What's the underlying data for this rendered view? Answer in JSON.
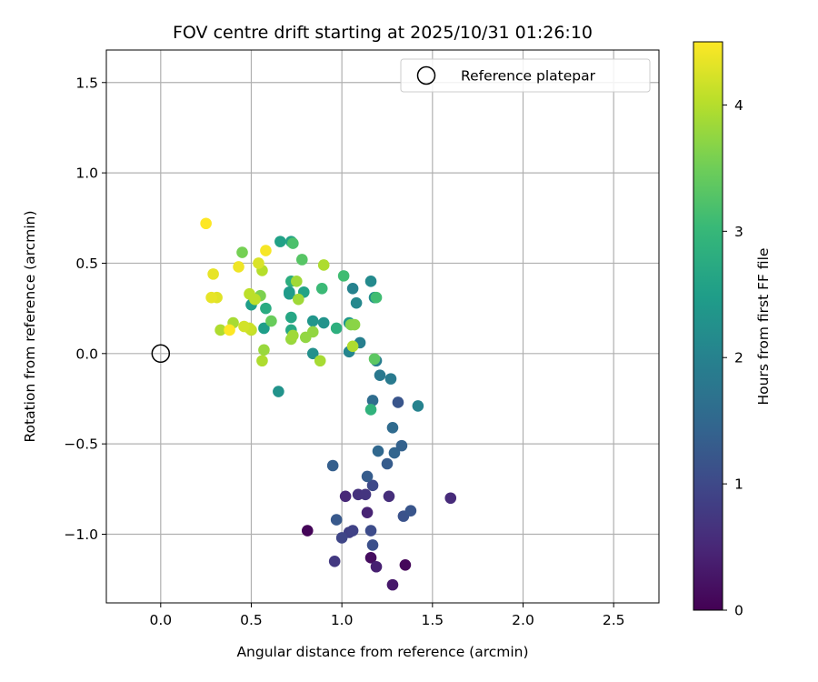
{
  "chart_data": {
    "type": "scatter",
    "title": "FOV centre drift starting at 2025/10/31 01:26:10",
    "xlabel": "Angular distance from reference (arcmin)",
    "ylabel": "Rotation from reference (arcmin)",
    "xlim": [
      -0.3,
      2.75
    ],
    "ylim": [
      -1.38,
      1.68
    ],
    "xticks": [
      0.0,
      0.5,
      1.0,
      1.5,
      2.0,
      2.5
    ],
    "xtick_labels": [
      "0.0",
      "0.5",
      "1.0",
      "1.5",
      "2.0",
      "2.5"
    ],
    "yticks": [
      -1.0,
      -0.5,
      0.0,
      0.5,
      1.0,
      1.5
    ],
    "ytick_labels": [
      "−1.0",
      "−0.5",
      "0.0",
      "0.5",
      "1.0",
      "1.5"
    ],
    "grid": true,
    "legend": {
      "location": "top-right",
      "label": "Reference platepar"
    },
    "reference_point": {
      "x": 0.0,
      "y": 0.0
    },
    "colorbar": {
      "label": "Hours from first FF file",
      "min": 0,
      "max": 4.5,
      "ticks": [
        0,
        1,
        2,
        3,
        4
      ],
      "tick_labels": [
        "0",
        "1",
        "2",
        "3",
        "4"
      ],
      "colormap": [
        "#440154",
        "#482878",
        "#3e4989",
        "#31688e",
        "#26828e",
        "#1f9e89",
        "#35b779",
        "#6ece58",
        "#b5de2b",
        "#fde725"
      ]
    },
    "points": [
      {
        "x": 0.81,
        "y": -0.98,
        "h": 0.05
      },
      {
        "x": 1.35,
        "y": -1.17,
        "h": 0.08
      },
      {
        "x": 1.16,
        "y": -1.13,
        "h": 0.15
      },
      {
        "x": 1.28,
        "y": -1.28,
        "h": 0.3
      },
      {
        "x": 1.19,
        "y": -1.18,
        "h": 0.4
      },
      {
        "x": 1.14,
        "y": -0.88,
        "h": 0.45
      },
      {
        "x": 1.02,
        "y": -0.79,
        "h": 0.5
      },
      {
        "x": 1.6,
        "y": -0.8,
        "h": 0.55
      },
      {
        "x": 1.26,
        "y": -0.79,
        "h": 0.6
      },
      {
        "x": 1.09,
        "y": -0.78,
        "h": 0.65
      },
      {
        "x": 1.13,
        "y": -0.78,
        "h": 0.7
      },
      {
        "x": 0.96,
        "y": -1.15,
        "h": 0.75
      },
      {
        "x": 1.04,
        "y": -0.99,
        "h": 0.85
      },
      {
        "x": 1.06,
        "y": -0.98,
        "h": 0.9
      },
      {
        "x": 1.0,
        "y": -1.02,
        "h": 0.95
      },
      {
        "x": 1.17,
        "y": -0.73,
        "h": 1.0
      },
      {
        "x": 1.16,
        "y": -0.98,
        "h": 1.05
      },
      {
        "x": 1.17,
        "y": -1.06,
        "h": 1.1
      },
      {
        "x": 1.34,
        "y": -0.9,
        "h": 1.15
      },
      {
        "x": 1.38,
        "y": -0.87,
        "h": 1.2
      },
      {
        "x": 0.97,
        "y": -0.92,
        "h": 1.25
      },
      {
        "x": 1.14,
        "y": -0.68,
        "h": 1.3
      },
      {
        "x": 0.95,
        "y": -0.62,
        "h": 1.35
      },
      {
        "x": 1.25,
        "y": -0.61,
        "h": 1.3
      },
      {
        "x": 1.31,
        "y": -0.27,
        "h": 1.2
      },
      {
        "x": 1.29,
        "y": -0.55,
        "h": 1.45
      },
      {
        "x": 1.2,
        "y": -0.54,
        "h": 1.5
      },
      {
        "x": 1.33,
        "y": -0.51,
        "h": 1.4
      },
      {
        "x": 1.28,
        "y": -0.41,
        "h": 1.55
      },
      {
        "x": 1.17,
        "y": -0.26,
        "h": 1.6
      },
      {
        "x": 1.21,
        "y": -0.12,
        "h": 1.8
      },
      {
        "x": 1.27,
        "y": -0.14,
        "h": 1.85
      },
      {
        "x": 1.19,
        "y": -0.04,
        "h": 1.9
      },
      {
        "x": 1.42,
        "y": -0.29,
        "h": 2.0
      },
      {
        "x": 1.1,
        "y": 0.06,
        "h": 1.95
      },
      {
        "x": 1.04,
        "y": 0.01,
        "h": 2.05
      },
      {
        "x": 1.08,
        "y": 0.28,
        "h": 2.1
      },
      {
        "x": 1.06,
        "y": 0.36,
        "h": 2.0
      },
      {
        "x": 1.16,
        "y": 0.4,
        "h": 2.15
      },
      {
        "x": 1.18,
        "y": 0.31,
        "h": 2.2
      },
      {
        "x": 0.84,
        "y": 0.0,
        "h": 2.25
      },
      {
        "x": 0.65,
        "y": -0.21,
        "h": 2.3
      },
      {
        "x": 0.9,
        "y": 0.17,
        "h": 2.3
      },
      {
        "x": 0.84,
        "y": 0.18,
        "h": 2.35
      },
      {
        "x": 1.04,
        "y": 0.17,
        "h": 2.4
      },
      {
        "x": 0.71,
        "y": 0.34,
        "h": 2.45
      },
      {
        "x": 0.71,
        "y": 0.33,
        "h": 2.45
      },
      {
        "x": 0.57,
        "y": 0.14,
        "h": 2.5
      },
      {
        "x": 0.5,
        "y": 0.27,
        "h": 2.5
      },
      {
        "x": 0.66,
        "y": 0.62,
        "h": 2.55
      },
      {
        "x": 0.72,
        "y": 0.62,
        "h": 2.6
      },
      {
        "x": 0.79,
        "y": 0.34,
        "h": 2.6
      },
      {
        "x": 0.72,
        "y": 0.2,
        "h": 2.65
      },
      {
        "x": 0.72,
        "y": 0.13,
        "h": 2.7
      },
      {
        "x": 0.58,
        "y": 0.25,
        "h": 2.75
      },
      {
        "x": 0.72,
        "y": 0.4,
        "h": 2.8
      },
      {
        "x": 0.97,
        "y": 0.14,
        "h": 2.85
      },
      {
        "x": 1.16,
        "y": -0.31,
        "h": 2.9
      },
      {
        "x": 0.89,
        "y": 0.36,
        "h": 3.05
      },
      {
        "x": 1.01,
        "y": 0.43,
        "h": 3.1
      },
      {
        "x": 1.19,
        "y": 0.31,
        "h": 3.1
      },
      {
        "x": 0.73,
        "y": 0.61,
        "h": 3.2
      },
      {
        "x": 0.78,
        "y": 0.52,
        "h": 3.3
      },
      {
        "x": 1.18,
        "y": -0.03,
        "h": 3.35
      },
      {
        "x": 0.61,
        "y": 0.18,
        "h": 3.45
      },
      {
        "x": 0.52,
        "y": 0.3,
        "h": 3.5
      },
      {
        "x": 0.45,
        "y": 0.56,
        "h": 3.55
      },
      {
        "x": 0.55,
        "y": 0.32,
        "h": 3.6
      },
      {
        "x": 1.05,
        "y": 0.16,
        "h": 3.65
      },
      {
        "x": 1.07,
        "y": 0.16,
        "h": 3.7
      },
      {
        "x": 0.8,
        "y": 0.09,
        "h": 3.75
      },
      {
        "x": 0.84,
        "y": 0.12,
        "h": 3.75
      },
      {
        "x": 0.57,
        "y": 0.02,
        "h": 3.8
      },
      {
        "x": 0.72,
        "y": 0.08,
        "h": 3.8
      },
      {
        "x": 0.73,
        "y": 0.1,
        "h": 3.85
      },
      {
        "x": 0.76,
        "y": 0.3,
        "h": 3.85
      },
      {
        "x": 0.75,
        "y": 0.4,
        "h": 3.85
      },
      {
        "x": 0.88,
        "y": -0.04,
        "h": 3.9
      },
      {
        "x": 0.4,
        "y": 0.17,
        "h": 3.9
      },
      {
        "x": 0.33,
        "y": 0.13,
        "h": 3.95
      },
      {
        "x": 0.56,
        "y": -0.04,
        "h": 3.95
      },
      {
        "x": 1.06,
        "y": 0.04,
        "h": 3.95
      },
      {
        "x": 0.9,
        "y": 0.49,
        "h": 3.95
      },
      {
        "x": 0.56,
        "y": 0.46,
        "h": 4.0
      },
      {
        "x": 0.49,
        "y": 0.33,
        "h": 4.05
      },
      {
        "x": 0.52,
        "y": 0.3,
        "h": 4.05
      },
      {
        "x": 0.5,
        "y": 0.13,
        "h": 4.1
      },
      {
        "x": 0.49,
        "y": 0.14,
        "h": 4.15
      },
      {
        "x": 0.46,
        "y": 0.15,
        "h": 4.2
      },
      {
        "x": 0.54,
        "y": 0.5,
        "h": 4.25
      },
      {
        "x": 0.31,
        "y": 0.31,
        "h": 4.3
      },
      {
        "x": 0.28,
        "y": 0.31,
        "h": 4.35
      },
      {
        "x": 0.29,
        "y": 0.44,
        "h": 4.35
      },
      {
        "x": 0.43,
        "y": 0.48,
        "h": 4.4
      },
      {
        "x": 0.58,
        "y": 0.57,
        "h": 4.45
      },
      {
        "x": 0.38,
        "y": 0.13,
        "h": 4.5
      },
      {
        "x": 0.25,
        "y": 0.72,
        "h": 4.5
      }
    ]
  }
}
